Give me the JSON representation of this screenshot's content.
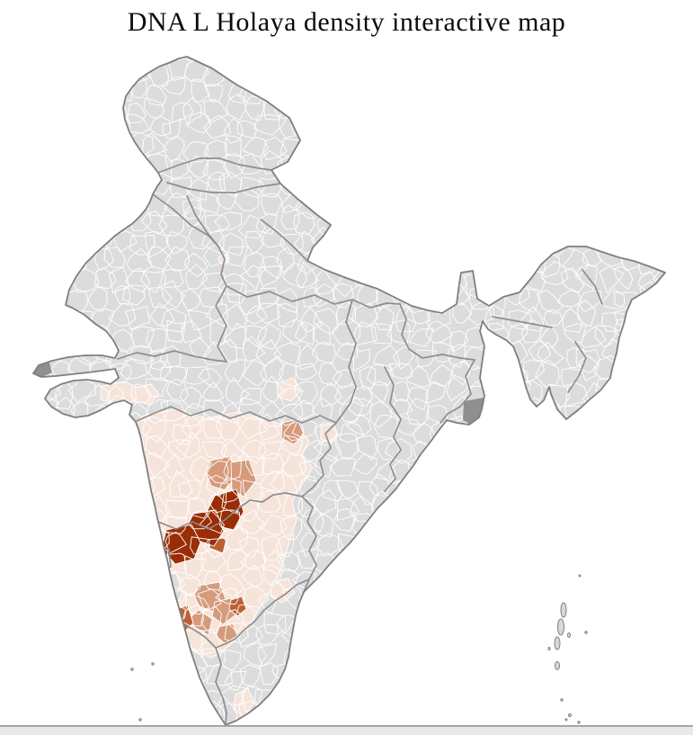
{
  "title": "DNA L Holaya density interactive map",
  "map": {
    "type": "choropleth",
    "subject": "india-districts",
    "interactive": true,
    "palette": {
      "sea": "#ffffff",
      "no_data": "#dcdcdc",
      "low": "#f6e4da",
      "medium": "#d59b7b",
      "medium_high": "#bd6134",
      "high": "#9a2d06",
      "district_border": "#ffffff",
      "state_border": "#8a8a8a",
      "outline": "#7f7f7f",
      "dense_area": "#8f8f8f",
      "island": "#d9d9d9"
    },
    "density_levels": [
      {
        "level": "no_data",
        "color": "#dcdcdc"
      },
      {
        "level": "low",
        "color": "#f6e4da"
      },
      {
        "level": "medium",
        "color": "#d59b7b"
      },
      {
        "level": "medium_high",
        "color": "#bd6134"
      },
      {
        "level": "high",
        "color": "#9a2d06"
      }
    ],
    "regions": [
      {
        "id": "low-belt-deccan",
        "density": "low"
      },
      {
        "id": "low-patch-east-1",
        "density": "low"
      },
      {
        "id": "low-patch-gujarat-1",
        "density": "low"
      },
      {
        "id": "low-patch-gujarat-2",
        "density": "low"
      },
      {
        "id": "low-patch-northwest-capital",
        "density": "low"
      },
      {
        "id": "low-patch-central-1",
        "density": "low"
      },
      {
        "id": "low-patch-south-tip",
        "density": "low"
      },
      {
        "id": "low-patch-southeast-1",
        "density": "low"
      },
      {
        "id": "medium-district-1",
        "density": "medium"
      },
      {
        "id": "medium-district-2",
        "density": "medium"
      },
      {
        "id": "medium-district-3",
        "density": "medium"
      },
      {
        "id": "medium-district-4",
        "density": "medium"
      },
      {
        "id": "medium-district-5",
        "density": "medium"
      },
      {
        "id": "medium-district-6",
        "density": "medium"
      },
      {
        "id": "medium-district-7",
        "density": "medium"
      },
      {
        "id": "medium-high-district-1",
        "density": "medium_high"
      },
      {
        "id": "medium-high-district-2",
        "density": "medium_high"
      },
      {
        "id": "medium-high-district-3",
        "density": "medium_high"
      },
      {
        "id": "high-district-1",
        "density": "high"
      },
      {
        "id": "high-district-2",
        "density": "high"
      },
      {
        "id": "high-district-3",
        "density": "high"
      }
    ]
  },
  "scrollbar": {
    "orientation": "horizontal"
  }
}
